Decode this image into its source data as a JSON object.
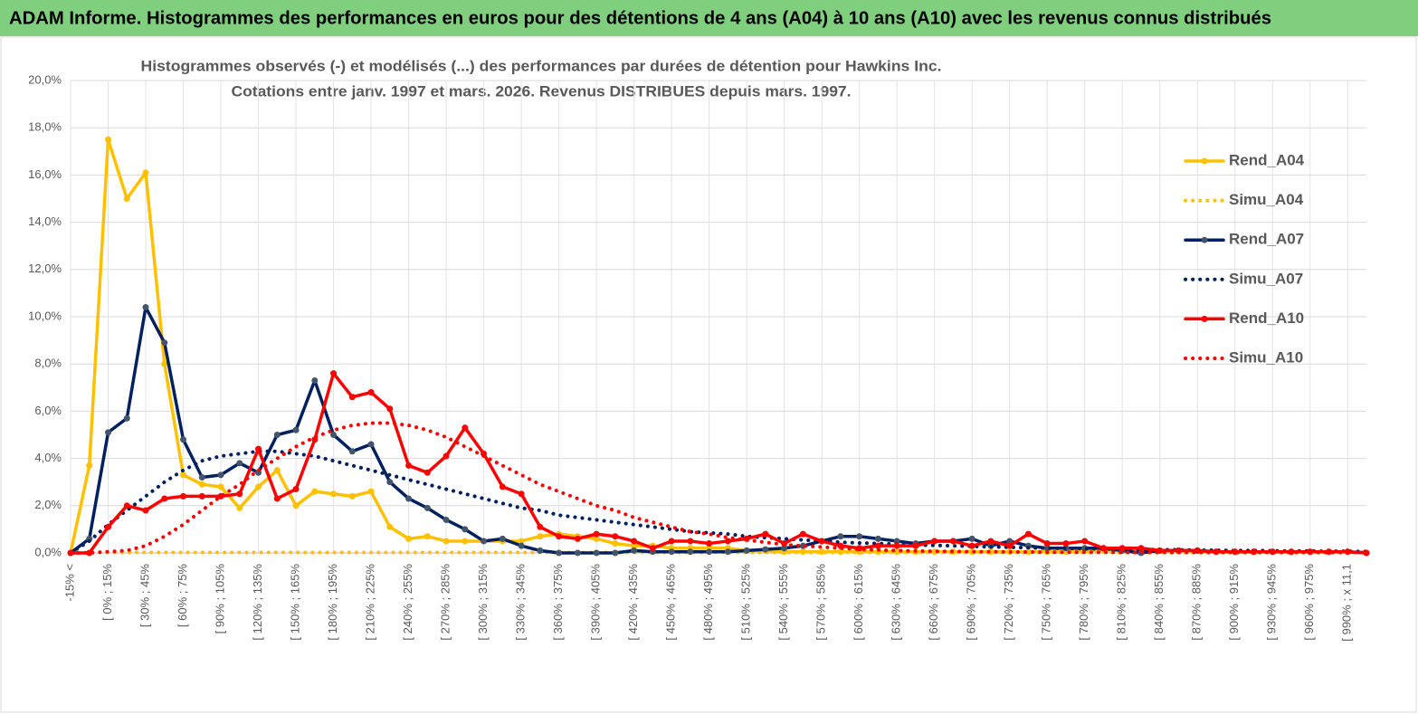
{
  "chart_data": {
    "type": "line",
    "header": "ADAM Informe. Histogrammes des performances en euros pour des détentions de 4 ans (A04) à 10 ans (A10) avec les revenus connus distribués",
    "title": "Histogrammes observés (-) et modélisés (...) des performances par durées de détention pour Hawkins Inc.",
    "subtitle": "Cotations entre janv. 1997 et mars. 2026. Revenus DISTRIBUES depuis mars. 1997.",
    "categories": [
      "-15% <",
      null,
      "[ 0% ; 15%",
      null,
      "[ 30% ; 45%",
      null,
      "[ 60% ; 75%",
      null,
      "[ 90% ; 105%",
      null,
      "[ 120% ; 135%",
      null,
      "[ 150% ; 165%",
      null,
      "[ 180% ; 195%",
      null,
      "[ 210% ; 225%",
      null,
      "[ 240% ; 255%",
      null,
      "[ 270% ; 285%",
      null,
      "[ 300% ; 315%",
      null,
      "[ 330% ; 345%",
      null,
      "[ 360% ; 375%",
      null,
      "[ 390% ; 405%",
      null,
      "[ 420% ; 435%",
      null,
      "[ 450% ; 465%",
      null,
      "[ 480% ; 495%",
      null,
      "[ 510% ; 525%",
      null,
      "[ 540% ; 555%",
      null,
      "[ 570% ; 585%",
      null,
      "[ 600% ; 615%",
      null,
      "[ 630% ; 645%",
      null,
      "[ 660% ; 675%",
      null,
      "[ 690% ; 705%",
      null,
      "[ 720% ; 735%",
      null,
      "[ 750% ; 765%",
      null,
      "[ 780% ; 795%",
      null,
      "[ 810% ; 825%",
      null,
      "[ 840% ; 855%",
      null,
      "[ 870% ; 885%",
      null,
      "[ 900% ; 915%",
      null,
      "[ 930% ; 945%",
      null,
      "[ 960% ; 975%",
      null,
      "[ 990% ; x 11,1",
      null
    ],
    "series": [
      {
        "name": "Rend_A04",
        "color": "#FFC000",
        "style": "solid",
        "markers": true,
        "values": [
          0,
          3.7,
          17.5,
          15.0,
          16.1,
          8.0,
          3.3,
          2.9,
          2.8,
          1.9,
          2.8,
          3.5,
          2.0,
          2.6,
          2.5,
          2.4,
          2.6,
          1.1,
          0.6,
          0.7,
          0.5,
          0.5,
          0.5,
          0.5,
          0.5,
          0.7,
          0.8,
          0.7,
          0.6,
          0.4,
          0.3,
          0.3,
          0.2,
          0.2,
          0.2,
          0.2,
          0.1,
          0.1,
          0.05,
          0.05,
          0.05,
          0.05,
          0.05,
          0.05,
          0.05,
          0.05,
          0.05,
          0.05,
          0.05,
          0.05,
          0.05,
          0.05,
          0.05,
          0.05,
          0.1,
          0.1,
          0.1,
          0.1,
          0.1,
          0.1,
          0.1,
          0.05,
          0.05,
          0.05,
          0.05,
          0.05,
          0.05,
          0.05,
          0.05,
          0
        ]
      },
      {
        "name": "Simu_A04",
        "color": "#FFC000",
        "style": "dotted",
        "markers": false,
        "values": [
          0,
          0.02,
          0.02,
          0.02,
          0.02,
          0.02,
          0.02,
          0.02,
          0.02,
          0.02,
          0.02,
          0.02,
          0.02,
          0.02,
          0.02,
          0.02,
          0.02,
          0.02,
          0.02,
          0.02,
          0.02,
          0.02,
          0.02,
          0.02,
          0.02,
          0.02,
          0.02,
          0.02,
          0.02,
          0.02,
          0.02,
          0.02,
          0.02,
          0.02,
          0.02,
          0.02,
          0.02,
          0.02,
          0.02,
          0.02,
          0.02,
          0.02,
          0.02,
          0.02,
          0.02,
          0.02,
          0.02,
          0.02,
          0.02,
          0.02,
          0.02,
          0.02,
          0.02,
          0.02,
          0.02,
          0.02,
          0.02,
          0.02,
          0.02,
          0.02,
          0.02,
          0.02,
          0.02,
          0.02,
          0.02,
          0.02,
          0.02,
          0.02,
          0.02,
          0.02
        ]
      },
      {
        "name": "Rend_A07",
        "color": "#002060",
        "style": "solid",
        "markers": true,
        "values": [
          0,
          0.6,
          5.1,
          5.7,
          10.4,
          8.9,
          4.8,
          3.2,
          3.3,
          3.8,
          3.4,
          5.0,
          5.2,
          7.3,
          5.0,
          4.3,
          4.6,
          3.0,
          2.3,
          1.9,
          1.4,
          1.0,
          0.5,
          0.6,
          0.3,
          0.1,
          0,
          0,
          0,
          0,
          0.1,
          0.05,
          0.05,
          0.05,
          0.05,
          0.05,
          0.1,
          0.15,
          0.2,
          0.3,
          0.5,
          0.7,
          0.7,
          0.6,
          0.5,
          0.4,
          0.5,
          0.5,
          0.6,
          0.3,
          0.5,
          0.3,
          0.2,
          0.2,
          0.2,
          0.2,
          0.1,
          0,
          0.1,
          0.1,
          0.1,
          0.05,
          0.05,
          0.05,
          0.05,
          0.05,
          0.05,
          0.05,
          0.05,
          0
        ]
      },
      {
        "name": "Simu_A07",
        "color": "#002060",
        "style": "dotted",
        "markers": false,
        "values": [
          0,
          0.5,
          1.2,
          1.8,
          2.4,
          3.0,
          3.5,
          3.9,
          4.1,
          4.2,
          4.3,
          4.3,
          4.2,
          4.1,
          3.9,
          3.7,
          3.5,
          3.3,
          3.1,
          2.9,
          2.7,
          2.5,
          2.3,
          2.1,
          1.9,
          1.8,
          1.6,
          1.5,
          1.4,
          1.3,
          1.2,
          1.1,
          1.0,
          0.9,
          0.85,
          0.8,
          0.7,
          0.65,
          0.6,
          0.55,
          0.5,
          0.45,
          0.42,
          0.4,
          0.37,
          0.34,
          0.32,
          0.3,
          0.28,
          0.26,
          0.24,
          0.22,
          0.2,
          0.19,
          0.18,
          0.17,
          0.16,
          0.15,
          0.14,
          0.13,
          0.12,
          0.11,
          0.1,
          0.1,
          0.09,
          0.08,
          0.08,
          0.07,
          0.07,
          0.06
        ]
      },
      {
        "name": "Rend_A10",
        "color": "#FF0000",
        "style": "solid",
        "markers": true,
        "values": [
          0,
          0,
          1.1,
          2.0,
          1.8,
          2.3,
          2.4,
          2.4,
          2.4,
          2.5,
          4.4,
          2.3,
          2.7,
          4.8,
          7.6,
          6.6,
          6.8,
          6.1,
          3.7,
          3.4,
          4.1,
          5.3,
          4.2,
          2.8,
          2.5,
          1.1,
          0.7,
          0.6,
          0.8,
          0.7,
          0.5,
          0.2,
          0.5,
          0.5,
          0.4,
          0.5,
          0.6,
          0.8,
          0.4,
          0.8,
          0.5,
          0.3,
          0.2,
          0.3,
          0.3,
          0.3,
          0.5,
          0.5,
          0.3,
          0.5,
          0.3,
          0.8,
          0.4,
          0.4,
          0.5,
          0.2,
          0.2,
          0.2,
          0.1,
          0.1,
          0.1,
          0.05,
          0.05,
          0.05,
          0.05,
          0.05,
          0.05,
          0.05,
          0.05,
          0
        ]
      },
      {
        "name": "Simu_A10",
        "color": "#FF0000",
        "style": "dotted",
        "markers": false,
        "values": [
          0,
          0,
          0.05,
          0.1,
          0.3,
          0.7,
          1.2,
          1.8,
          2.4,
          2.9,
          3.5,
          4.0,
          4.5,
          4.9,
          5.2,
          5.4,
          5.5,
          5.5,
          5.4,
          5.2,
          4.9,
          4.5,
          4.1,
          3.7,
          3.3,
          2.9,
          2.6,
          2.3,
          2.0,
          1.8,
          1.5,
          1.3,
          1.1,
          0.9,
          0.8,
          0.65,
          0.55,
          0.45,
          0.35,
          0.3,
          0.25,
          0.2,
          0.15,
          0.12,
          0.1,
          0.08,
          0.07,
          0.06,
          0.05,
          0.05,
          0.04,
          0.04,
          0.03,
          0.03,
          0.03,
          0.03,
          0.02,
          0.02,
          0.02,
          0.02,
          0.02,
          0.02,
          0.02,
          0.02,
          0.02,
          0.02,
          0.02,
          0.02,
          0.02,
          0.02
        ]
      }
    ],
    "ylim": [
      0,
      20
    ],
    "yticks": [
      {
        "value": 0,
        "label": "0,0%"
      },
      {
        "value": 2,
        "label": "2,0%"
      },
      {
        "value": 4,
        "label": "4,0%"
      },
      {
        "value": 6,
        "label": "6,0%"
      },
      {
        "value": 8,
        "label": "8,0%"
      },
      {
        "value": 10,
        "label": "10,0%"
      },
      {
        "value": 12,
        "label": "12,0%"
      },
      {
        "value": 14,
        "label": "14,0%"
      },
      {
        "value": 16,
        "label": "16,0%"
      },
      {
        "value": 18,
        "label": "18,0%"
      },
      {
        "value": 20,
        "label": "20,0%"
      }
    ],
    "grid": true,
    "legend": "right"
  }
}
